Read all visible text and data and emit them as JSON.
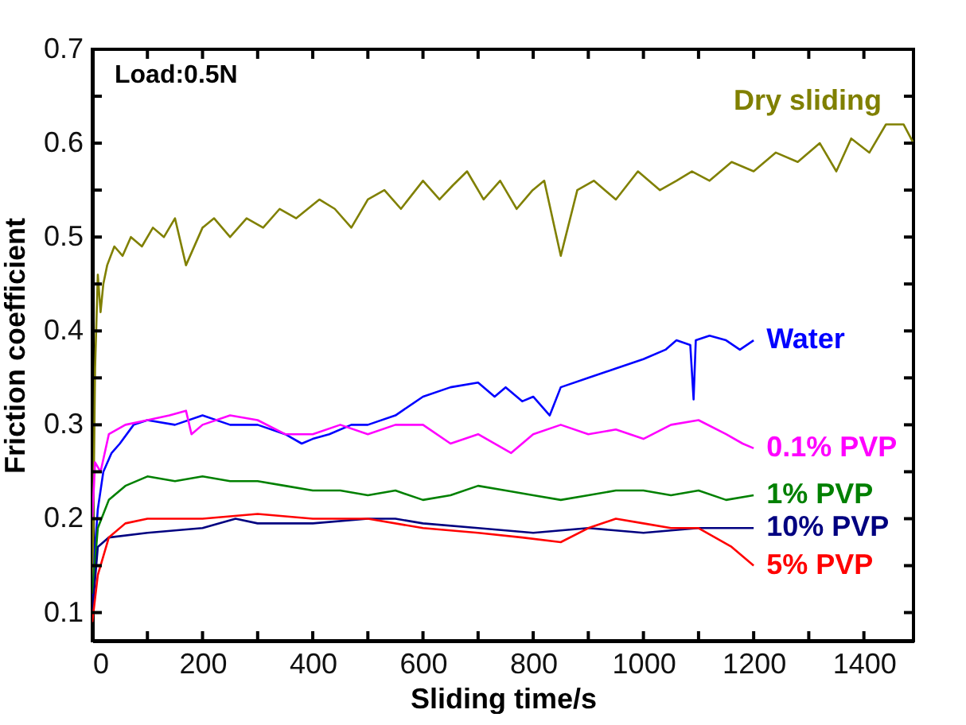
{
  "chart_data": {
    "type": "line",
    "xlabel": "Sliding time/s",
    "ylabel": "Friction coefficient",
    "annotations": [
      "Load:0.5N"
    ],
    "xlim": [
      0,
      1490
    ],
    "ylim": [
      0.07,
      0.7
    ],
    "xticks": [
      0,
      {
        "value": 100,
        "label": null
      },
      200,
      {
        "value": 300,
        "label": null
      },
      400,
      {
        "value": 500,
        "label": null
      },
      600,
      {
        "value": 700,
        "label": null
      },
      800,
      {
        "value": 900,
        "label": null
      },
      1000,
      {
        "value": 1100,
        "label": null
      },
      1200,
      {
        "value": 1300,
        "label": null
      },
      1400
    ],
    "yticks": [
      0.1,
      {
        "value": 0.15,
        "label": null
      },
      0.2,
      {
        "value": 0.25,
        "label": null
      },
      0.3,
      {
        "value": 0.35,
        "label": null
      },
      0.4,
      {
        "value": 0.45,
        "label": null
      },
      0.5,
      {
        "value": 0.55,
        "label": null
      },
      0.6,
      {
        "value": 0.65,
        "label": null
      },
      0.7
    ],
    "grid": false,
    "line_style": "solid",
    "marker": "none",
    "series": [
      {
        "name": "Dry sliding",
        "color": "#808000",
        "x": [
          0,
          5,
          10,
          15,
          20,
          27,
          40,
          55,
          70,
          90,
          110,
          130,
          150,
          170,
          200,
          221,
          250,
          280,
          310,
          340,
          370,
          412,
          440,
          470,
          500,
          530,
          560,
          600,
          630,
          654,
          680,
          710,
          740,
          770,
          799,
          820,
          850,
          880,
          910,
          950,
          990,
          1030,
          1060,
          1088,
          1120,
          1160,
          1200,
          1240,
          1280,
          1320,
          1350,
          1377,
          1410,
          1440,
          1472,
          1490
        ],
        "values": [
          0.1,
          0.36,
          0.46,
          0.42,
          0.45,
          0.47,
          0.49,
          0.48,
          0.5,
          0.49,
          0.51,
          0.5,
          0.52,
          0.47,
          0.51,
          0.52,
          0.5,
          0.52,
          0.51,
          0.53,
          0.52,
          0.54,
          0.53,
          0.51,
          0.54,
          0.55,
          0.53,
          0.56,
          0.54,
          0.555,
          0.57,
          0.54,
          0.56,
          0.53,
          0.55,
          0.56,
          0.48,
          0.55,
          0.56,
          0.54,
          0.57,
          0.55,
          0.56,
          0.57,
          0.56,
          0.58,
          0.57,
          0.59,
          0.58,
          0.6,
          0.57,
          0.605,
          0.59,
          0.62,
          0.62,
          0.6
        ]
      },
      {
        "name": "Water",
        "color": "#0000ff",
        "x": [
          0,
          5,
          10,
          20,
          35,
          50,
          75,
          100,
          150,
          200,
          250,
          300,
          350,
          380,
          400,
          430,
          470,
          500,
          550,
          600,
          650,
          700,
          730,
          750,
          780,
          800,
          830,
          850,
          900,
          950,
          1000,
          1040,
          1060,
          1085,
          1091,
          1095,
          1120,
          1150,
          1175,
          1200
        ],
        "values": [
          0.1,
          0.17,
          0.21,
          0.25,
          0.27,
          0.28,
          0.3,
          0.305,
          0.3,
          0.31,
          0.3,
          0.3,
          0.29,
          0.28,
          0.285,
          0.29,
          0.3,
          0.3,
          0.31,
          0.33,
          0.34,
          0.345,
          0.33,
          0.34,
          0.325,
          0.33,
          0.31,
          0.34,
          0.35,
          0.36,
          0.37,
          0.38,
          0.39,
          0.385,
          0.327,
          0.39,
          0.395,
          0.39,
          0.38,
          0.39
        ]
      },
      {
        "name": "0.1% PVP",
        "color": "#ff00ff",
        "x": [
          0,
          5,
          15,
          30,
          60,
          100,
          140,
          170,
          180,
          200,
          250,
          300,
          350,
          400,
          450,
          500,
          550,
          600,
          650,
          700,
          760,
          800,
          850,
          900,
          950,
          1000,
          1050,
          1100,
          1150,
          1180,
          1200
        ],
        "values": [
          0.2,
          0.26,
          0.25,
          0.29,
          0.3,
          0.305,
          0.31,
          0.315,
          0.29,
          0.3,
          0.31,
          0.305,
          0.29,
          0.29,
          0.3,
          0.29,
          0.3,
          0.3,
          0.28,
          0.29,
          0.27,
          0.29,
          0.3,
          0.29,
          0.295,
          0.285,
          0.3,
          0.305,
          0.29,
          0.28,
          0.275
        ]
      },
      {
        "name": "1% PVP",
        "color": "#008000",
        "x": [
          0,
          10,
          30,
          60,
          100,
          150,
          200,
          250,
          300,
          350,
          400,
          450,
          500,
          550,
          600,
          650,
          700,
          750,
          800,
          850,
          900,
          950,
          1000,
          1050,
          1100,
          1150,
          1200
        ],
        "values": [
          0.12,
          0.19,
          0.22,
          0.235,
          0.245,
          0.24,
          0.245,
          0.24,
          0.24,
          0.235,
          0.23,
          0.23,
          0.225,
          0.23,
          0.22,
          0.225,
          0.235,
          0.23,
          0.225,
          0.22,
          0.225,
          0.23,
          0.23,
          0.225,
          0.23,
          0.22,
          0.225
        ]
      },
      {
        "name": "10% PVP",
        "color": "#000080",
        "x": [
          0,
          10,
          30,
          100,
          200,
          260,
          300,
          400,
          500,
          550,
          600,
          700,
          800,
          900,
          1000,
          1100,
          1200
        ],
        "values": [
          0.1,
          0.17,
          0.18,
          0.185,
          0.19,
          0.2,
          0.195,
          0.195,
          0.2,
          0.2,
          0.195,
          0.19,
          0.185,
          0.19,
          0.185,
          0.19,
          0.19
        ]
      },
      {
        "name": "5% PVP",
        "color": "#ff0000",
        "x": [
          0,
          10,
          30,
          60,
          100,
          200,
          300,
          400,
          500,
          600,
          700,
          780,
          850,
          900,
          950,
          1000,
          1050,
          1100,
          1130,
          1160,
          1180,
          1200
        ],
        "values": [
          0.09,
          0.14,
          0.18,
          0.195,
          0.2,
          0.2,
          0.205,
          0.2,
          0.2,
          0.19,
          0.185,
          0.18,
          0.175,
          0.19,
          0.2,
          0.195,
          0.19,
          0.19,
          0.18,
          0.17,
          0.16,
          0.15
        ]
      }
    ]
  }
}
